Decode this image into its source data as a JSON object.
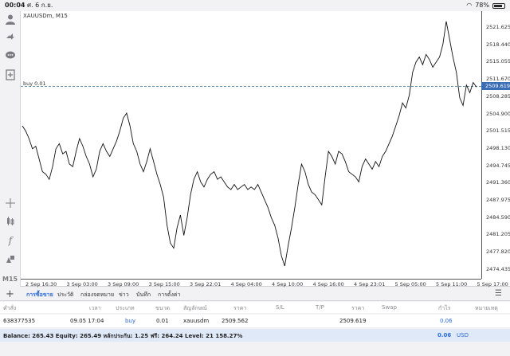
{
  "status_bar": {
    "time": "00:04",
    "date": "ศ. 6 ก.ย.",
    "battery": "78%"
  },
  "chart": {
    "symbol_label": "XAUUSDm, M15",
    "buy_line_label": "buy 0.01",
    "current_price": "2509.619",
    "price_ticks": [
      "2521.625",
      "2518.440",
      "2515.055",
      "2511.670",
      "2508.285",
      "2504.900",
      "2501.515",
      "2498.130",
      "2494.745",
      "2491.360",
      "2487.975",
      "2484.590",
      "2481.205",
      "2477.820",
      "2474.435"
    ],
    "time_ticks": [
      "2 Sep 16:30",
      "3 Sep 03:00",
      "3 Sep 09:00",
      "3 Sep 15:00",
      "3 Sep 22:01",
      "4 Sep 04:00",
      "4 Sep 10:00",
      "4 Sep 16:00",
      "4 Sep 23:01",
      "5 Sep 05:00",
      "5 Sep 11:00",
      "5 Sep 17:00"
    ],
    "line_color": "#111111",
    "price_box_color": "#3b6db4"
  },
  "chart_data": {
    "type": "line",
    "series": [
      {
        "values": [
          2502.0,
          2501.0,
          2499.5,
          2497.5,
          2498.0,
          2495.5,
          2493.0,
          2492.5,
          2491.5,
          2494.0,
          2497.5,
          2498.5,
          2496.5,
          2497.0,
          2494.5,
          2494.0,
          2497.0,
          2499.5,
          2498.0,
          2496.0,
          2494.5,
          2492.0,
          2493.5,
          2497.0,
          2498.5,
          2497.0,
          2496.0,
          2497.5,
          2499.0,
          2501.0,
          2503.5,
          2504.5,
          2502.0,
          2498.5,
          2497.0,
          2494.5,
          2493.0,
          2495.0,
          2497.5,
          2495.0,
          2492.5,
          2490.5,
          2488.0,
          2482.5,
          2479.0,
          2478.0,
          2482.0,
          2484.5,
          2480.5,
          2484.0,
          2488.5,
          2491.5,
          2493.0,
          2491.0,
          2490.0,
          2491.5,
          2492.5,
          2493.0,
          2491.5,
          2492.0,
          2491.0,
          2490.0,
          2489.5,
          2490.5,
          2489.5,
          2490.0,
          2490.5,
          2489.5,
          2490.0,
          2489.5,
          2490.5,
          2489.0,
          2487.5,
          2486.0,
          2484.0,
          2482.5,
          2480.0,
          2476.5,
          2474.5,
          2478.5,
          2482.0,
          2486.0,
          2490.5,
          2494.5,
          2493.0,
          2490.5,
          2489.0,
          2488.5,
          2487.5,
          2486.5,
          2492.0,
          2497.0,
          2496.0,
          2494.5,
          2497.0,
          2496.5,
          2495.0,
          2493.0,
          2492.5,
          2492.0,
          2491.0,
          2494.0,
          2495.5,
          2494.5,
          2493.5,
          2495.0,
          2494.0,
          2496.0,
          2497.0,
          2498.5,
          2500.0,
          2502.0,
          2504.0,
          2506.5,
          2505.5,
          2508.0,
          2512.5,
          2514.5,
          2515.5,
          2514.0,
          2516.0,
          2515.0,
          2513.5,
          2514.5,
          2515.5,
          2518.0,
          2522.5,
          2519.0,
          2515.5,
          2512.5,
          2507.5,
          2506.0,
          2510.0,
          2508.5,
          2510.5,
          2509.6
        ]
      }
    ],
    "x_tick_labels": [
      "2 Sep 16:30",
      "3 Sep 03:00",
      "3 Sep 09:00",
      "3 Sep 15:00",
      "3 Sep 22:01",
      "4 Sep 04:00",
      "4 Sep 10:00",
      "4 Sep 16:00",
      "4 Sep 23:01",
      "5 Sep 05:00",
      "5 Sep 11:00",
      "5 Sep 17:00"
    ],
    "ylim": [
      2472.0,
      2524.5
    ],
    "grid": false
  },
  "tabs": [
    {
      "label": "การซื้อขาย",
      "active": true
    },
    {
      "label": "ประวัติ"
    },
    {
      "label": "กล่องจดหมาย"
    },
    {
      "label": "ข่าว"
    },
    {
      "label": "บันทึก"
    },
    {
      "label": "การตั้งค่า"
    }
  ],
  "table": {
    "headers": [
      "คำสั่ง",
      "เวลา",
      "ประเภท",
      "ขนาด",
      "สัญลักษณ์",
      "ราคา",
      "S/L",
      "T/P",
      "ราคา",
      "Swap",
      "กำไร",
      "หมายเหตุ"
    ],
    "row": {
      "order": "638377535",
      "time": "09.05 17:04",
      "type": "buy",
      "size": "0.01",
      "symbol": "xauusdm",
      "price": "2509.562",
      "sl": "",
      "tp": "",
      "current": "2509.619",
      "swap": "",
      "profit": "0.06",
      "note": ""
    }
  },
  "balance": {
    "text": "Balance: 265.43 Equity: 265.49 หลักประกัน: 1.25 ฟรี: 264.24 Level: 21 158.27%",
    "profit": "0.06",
    "currency": "USD"
  }
}
